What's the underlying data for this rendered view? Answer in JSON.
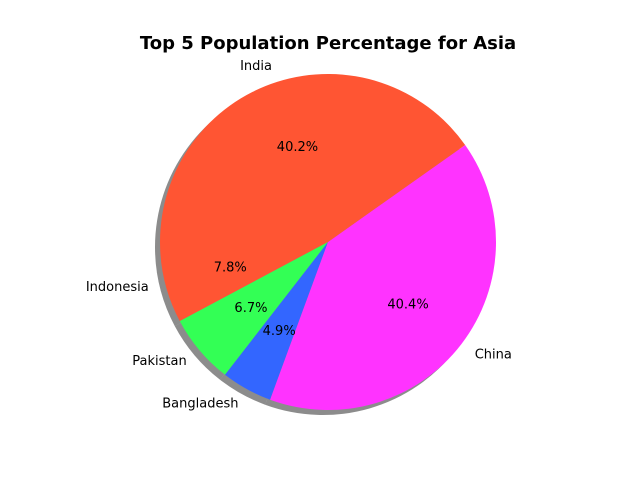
{
  "chart_data": {
    "type": "pie",
    "title": "Top 5 Population Percentage for Asia",
    "start_angle_deg": 180,
    "direction": "counterclockwise",
    "shadow": true,
    "slices": [
      {
        "label": "Indonesia",
        "value": 7.8,
        "pct_label": "7.8%",
        "color": "#ff5533"
      },
      {
        "label": "Pakistan",
        "value": 6.7,
        "pct_label": "6.7%",
        "color": "#33ff55"
      },
      {
        "label": "Bangladesh",
        "value": 4.9,
        "pct_label": "4.9%",
        "color": "#3366ff"
      },
      {
        "label": "China",
        "value": 40.4,
        "pct_label": "40.4%",
        "color": "#ff33ff"
      },
      {
        "label": "India",
        "value": 40.2,
        "pct_label": "40.2%",
        "color": "#ff5533"
      }
    ]
  }
}
